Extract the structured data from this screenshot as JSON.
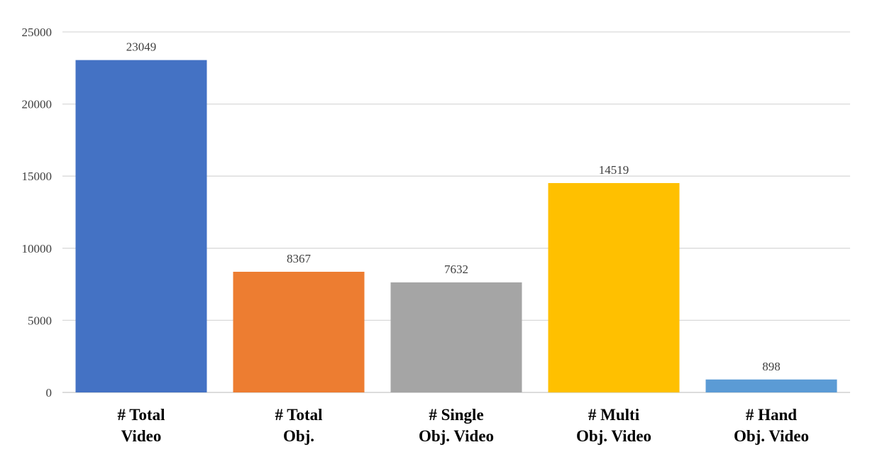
{
  "chart_data": {
    "type": "bar",
    "categories": [
      [
        "# Total",
        "Video"
      ],
      [
        "# Total",
        "Obj."
      ],
      [
        "# Single",
        "Obj. Video"
      ],
      [
        "# Multi",
        "Obj. Video"
      ],
      [
        "# Hand",
        "Obj. Video"
      ]
    ],
    "values": [
      23049,
      8367,
      7632,
      14519,
      898
    ],
    "data_labels": [
      "23049",
      "8367",
      "7632",
      "14519",
      "898"
    ],
    "bar_colors": [
      "#4472c4",
      "#ed7d31",
      "#a5a5a5",
      "#ffc000",
      "#5b9bd5"
    ],
    "ylim": [
      0,
      25000
    ],
    "yticks": [
      0,
      5000,
      10000,
      15000,
      20000,
      25000
    ],
    "ytick_labels": [
      "0",
      "5000",
      "10000",
      "15000",
      "20000",
      "25000"
    ],
    "grid": true,
    "legend": "none",
    "title": "",
    "xlabel": "",
    "ylabel": ""
  }
}
